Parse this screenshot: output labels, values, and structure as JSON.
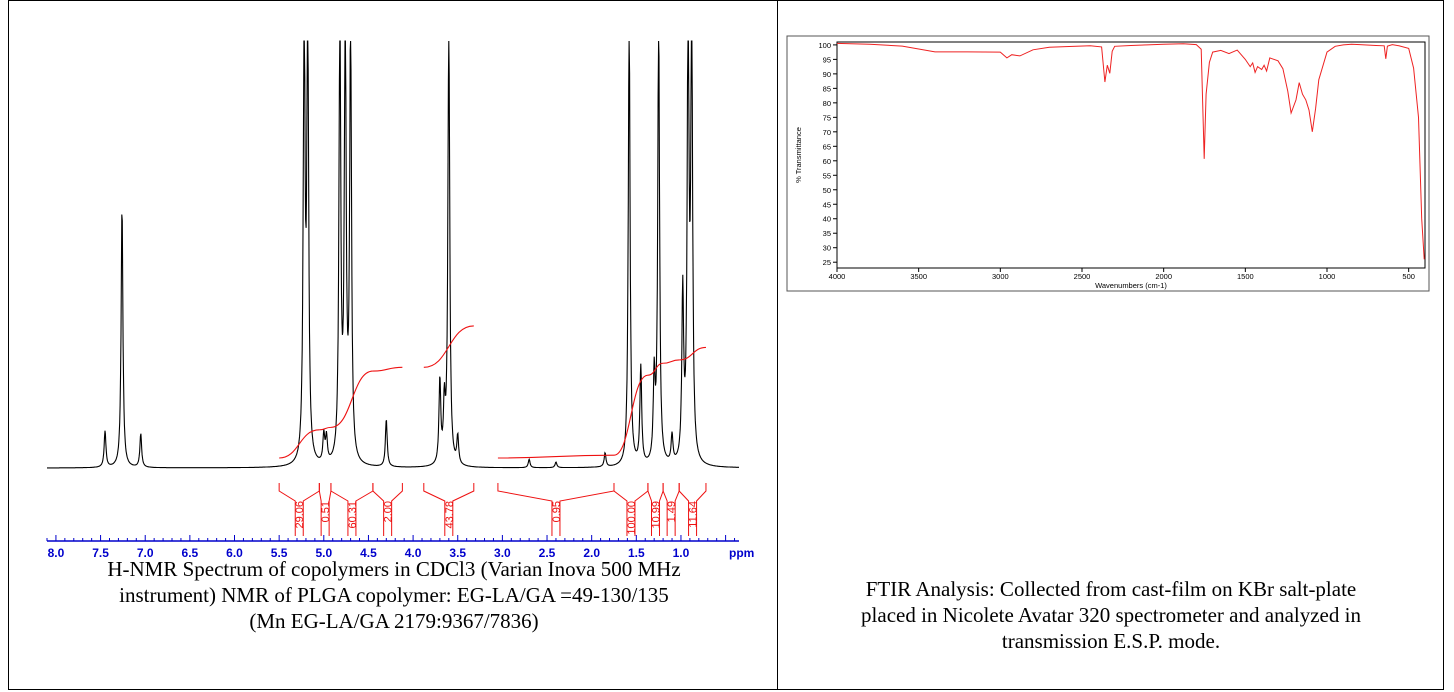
{
  "chart_data": [
    {
      "type": "line",
      "xlabel": "ppm",
      "x_ticks": [
        "8.0",
        "7.5",
        "7.0",
        "6.5",
        "6.0",
        "5.5",
        "5.0",
        "4.5",
        "4.0",
        "3.5",
        "3.0",
        "2.5",
        "2.0",
        "1.5",
        "1.0"
      ],
      "xlim": [
        8.1,
        0.35
      ],
      "integrals": [
        {
          "label": "29.06",
          "range": [
            5.5,
            5.05
          ]
        },
        {
          "label": "0.51",
          "range": [
            5.05,
            4.92
          ]
        },
        {
          "label": "60.31",
          "range": [
            4.92,
            4.45
          ]
        },
        {
          "label": "2.00",
          "range": [
            4.45,
            4.12
          ]
        },
        {
          "label": "43.78",
          "range": [
            3.88,
            3.32
          ]
        },
        {
          "label": "0.95",
          "range": [
            3.05,
            1.75
          ]
        },
        {
          "label": "100.00",
          "range": [
            1.75,
            1.37
          ]
        },
        {
          "label": "10.99",
          "range": [
            1.37,
            1.2
          ]
        },
        {
          "label": "1.49",
          "range": [
            1.2,
            1.02
          ]
        },
        {
          "label": "11.64",
          "range": [
            1.02,
            0.72
          ]
        }
      ],
      "peaks": [
        [
          7.45,
          0.13
        ],
        [
          7.26,
          0.93
        ],
        [
          7.05,
          0.12
        ],
        [
          5.22,
          1.6
        ],
        [
          5.18,
          1.6
        ],
        [
          5.0,
          0.1
        ],
        [
          4.97,
          0.09
        ],
        [
          4.82,
          1.6
        ],
        [
          4.76,
          1.6
        ],
        [
          4.7,
          1.6
        ],
        [
          4.3,
          0.17
        ],
        [
          3.7,
          0.3
        ],
        [
          3.65,
          0.2
        ],
        [
          3.6,
          1.6
        ],
        [
          3.5,
          0.1
        ],
        [
          2.7,
          0.03
        ],
        [
          2.4,
          0.02
        ],
        [
          1.85,
          0.05
        ],
        [
          1.58,
          1.6
        ],
        [
          1.45,
          0.35
        ],
        [
          1.3,
          0.3
        ],
        [
          1.25,
          1.6
        ],
        [
          1.1,
          0.1
        ],
        [
          0.98,
          0.6
        ],
        [
          0.92,
          1.6
        ],
        [
          0.88,
          1.6
        ]
      ],
      "caption": [
        "H-NMR Spectrum of copolymers in CDCl3 (Varian Inova 500 MHz",
        "instrument) NMR of PLGA copolymer: EG-LA/GA =49-130/135",
        "(Mn EG-LA/GA 2179:9367/7836)"
      ]
    },
    {
      "type": "line",
      "xlabel": "Wavenumbers (cm-1)",
      "ylabel": "% Transmittance",
      "xlim": [
        4000,
        400
      ],
      "ylim": [
        23,
        101
      ],
      "x_ticks": [
        "4000",
        "3500",
        "3000",
        "2500",
        "2000",
        "1500",
        "1000",
        "500"
      ],
      "y_ticks": [
        "100",
        "95",
        "90",
        "85",
        "80",
        "75",
        "70",
        "65",
        "60",
        "55",
        "50",
        "45",
        "40",
        "35",
        "30",
        "25"
      ],
      "series": [
        {
          "x": [
            4000,
            3800,
            3600,
            3400,
            3200,
            3000,
            2960,
            2930,
            2880,
            2800,
            2700,
            2600,
            2450,
            2380,
            2360,
            2345,
            2330,
            2315,
            2300,
            2200,
            2100,
            2000,
            1880,
            1800,
            1770,
            1752,
            1740,
            1720,
            1700,
            1650,
            1600,
            1550,
            1500,
            1470,
            1455,
            1440,
            1425,
            1400,
            1385,
            1370,
            1350,
            1300,
            1270,
            1240,
            1220,
            1190,
            1170,
            1150,
            1130,
            1110,
            1090,
            1070,
            1050,
            1000,
            950,
            900,
            850,
            800,
            700,
            650,
            640,
            630,
            600,
            560,
            500,
            470,
            440,
            420,
            405
          ],
          "values": [
            100.5,
            100.2,
            99.6,
            97.6,
            97.6,
            97.5,
            95.5,
            96.6,
            96.2,
            98.3,
            99.2,
            99.4,
            99.7,
            99.3,
            87.2,
            93.0,
            90.2,
            97.8,
            99.5,
            99.8,
            100.0,
            100.2,
            100.4,
            100.1,
            98.5,
            60.7,
            83.0,
            94.0,
            97.5,
            98.1,
            97.0,
            98.2,
            95.0,
            92.5,
            93.8,
            90.5,
            92.5,
            91.5,
            93.0,
            91.0,
            95.5,
            94.5,
            91.8,
            84.0,
            76.5,
            81.0,
            87.0,
            83.0,
            81.0,
            77.5,
            70.0,
            78.0,
            88.0,
            97.5,
            99.5,
            100.0,
            100.2,
            100.1,
            99.8,
            99.7,
            95.2,
            99.6,
            100.1,
            99.7,
            98.8,
            92.0,
            75.0,
            40.0,
            26.0
          ]
        }
      ],
      "caption": [
        "FTIR Analysis: Collected from cast-film on KBr salt-plate",
        "placed in Nicolete Avatar 320 spectrometer and analyzed in",
        "transmission E.S.P. mode."
      ]
    }
  ]
}
